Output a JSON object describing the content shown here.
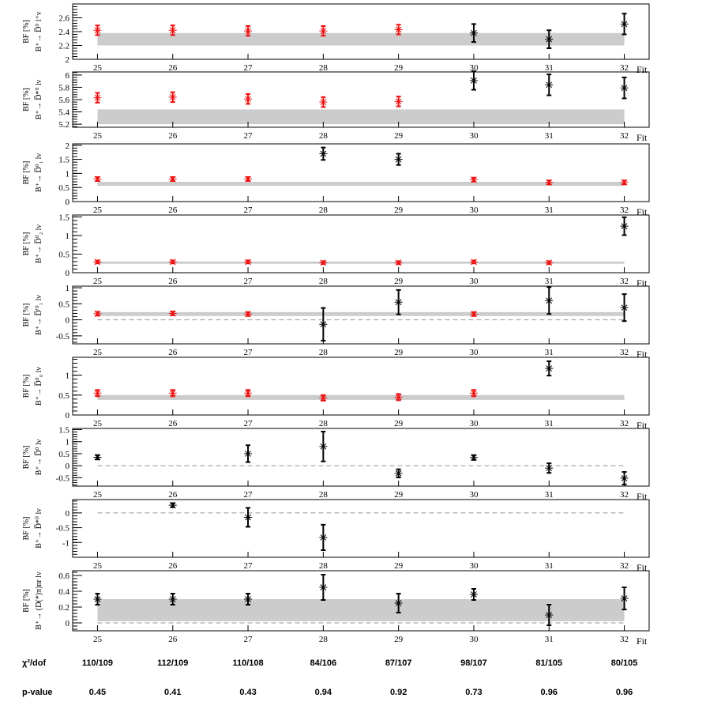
{
  "x_axis_word": "Fit",
  "fits": [
    "25",
    "26",
    "27",
    "28",
    "29",
    "30",
    "31",
    "32"
  ],
  "colors": {
    "consistent": "#ee1111",
    "inconsistent": "#000000",
    "band": "#cccccc",
    "dashed": "#999999",
    "frame": "#000000"
  },
  "chart_data": [
    {
      "type": "scatter",
      "ylabel_line1": "BF [%]",
      "ylabel_line2": "B⁺→ D̅⁰ l⁺ν",
      "ylim": [
        2.0,
        2.8
      ],
      "yticks": [
        2,
        2.2,
        2.4,
        2.6
      ],
      "ytick_labels": [
        "2",
        "2.2",
        "2.4",
        "2.6"
      ],
      "band": [
        2.2,
        2.38
      ],
      "zero_line": false,
      "x": [
        25,
        26,
        27,
        28,
        29,
        30,
        31,
        32
      ],
      "values": [
        2.42,
        2.42,
        2.41,
        2.41,
        2.43,
        2.38,
        2.29,
        2.51
      ],
      "errors": [
        0.07,
        0.07,
        0.07,
        0.07,
        0.07,
        0.13,
        0.13,
        0.15
      ],
      "status": [
        "c",
        "c",
        "c",
        "c",
        "c",
        "i",
        "i",
        "i"
      ]
    },
    {
      "type": "scatter",
      "ylabel_line1": "BF [%]",
      "ylabel_line2": "B⁺→ D̅*⁰ lν",
      "ylim": [
        5.15,
        6.05
      ],
      "yticks": [
        5.2,
        5.4,
        5.6,
        5.8,
        6.0
      ],
      "ytick_labels": [
        "5.2",
        "5.4",
        "5.6",
        "5.8",
        "6"
      ],
      "band": [
        5.2,
        5.44
      ],
      "zero_line": false,
      "x": [
        25,
        26,
        27,
        28,
        29,
        30,
        31,
        32
      ],
      "values": [
        5.63,
        5.64,
        5.61,
        5.56,
        5.57,
        5.91,
        5.84,
        5.79
      ],
      "errors": [
        0.08,
        0.08,
        0.08,
        0.08,
        0.08,
        0.15,
        0.17,
        0.17
      ],
      "status": [
        "c",
        "c",
        "c",
        "c",
        "c",
        "i",
        "i",
        "i"
      ]
    },
    {
      "type": "scatter",
      "ylabel_line1": "BF [%]",
      "ylabel_line2": "B⁺→ D̅⁰₁ lν",
      "ylim": [
        0,
        2.05
      ],
      "yticks": [
        0,
        0.5,
        1,
        1.5,
        2
      ],
      "ytick_labels": [
        "0",
        "0.5",
        "1",
        "1.5",
        "2"
      ],
      "band": [
        0.56,
        0.7
      ],
      "zero_line": false,
      "x": [
        25,
        26,
        27,
        28,
        29,
        30,
        31,
        32
      ],
      "values": [
        0.8,
        0.8,
        0.8,
        1.7,
        1.5,
        0.78,
        0.68,
        0.68
      ],
      "errors": [
        0.07,
        0.07,
        0.07,
        0.22,
        0.2,
        0.07,
        0.07,
        0.07
      ],
      "status": [
        "c",
        "c",
        "c",
        "i",
        "i",
        "c",
        "c",
        "c"
      ]
    },
    {
      "type": "scatter",
      "ylabel_line1": "BF [%]",
      "ylabel_line2": "B⁺→ D̅⁰₂ lν",
      "ylim": [
        0,
        1.55
      ],
      "yticks": [
        0,
        0.5,
        1,
        1.5
      ],
      "ytick_labels": [
        "0",
        "0.5",
        "1",
        "1.5"
      ],
      "band": [
        0.24,
        0.3
      ],
      "zero_line": false,
      "x": [
        25,
        26,
        27,
        28,
        29,
        30,
        31,
        32
      ],
      "values": [
        0.29,
        0.29,
        0.29,
        0.27,
        0.27,
        0.29,
        0.27,
        1.25
      ],
      "errors": [
        0.04,
        0.04,
        0.04,
        0.04,
        0.04,
        0.04,
        0.04,
        0.24
      ],
      "status": [
        "c",
        "c",
        "c",
        "c",
        "c",
        "c",
        "c",
        "i"
      ]
    },
    {
      "type": "scatter",
      "ylabel_line1": "BF [%]",
      "ylabel_line2": "B⁺→ D̅'⁰₁ lν",
      "ylim": [
        -0.75,
        1.05
      ],
      "yticks": [
        -0.5,
        0,
        0.5,
        1
      ],
      "ytick_labels": [
        "-0.5",
        "0",
        "0.5",
        "1"
      ],
      "band": [
        0.12,
        0.24
      ],
      "zero_line": true,
      "x": [
        25,
        26,
        27,
        28,
        29,
        30,
        31,
        32
      ],
      "values": [
        0.19,
        0.2,
        0.18,
        -0.14,
        0.55,
        0.18,
        0.6,
        0.38
      ],
      "errors": [
        0.06,
        0.06,
        0.06,
        0.51,
        0.38,
        0.06,
        0.42,
        0.42
      ],
      "status": [
        "c",
        "c",
        "c",
        "i",
        "i",
        "c",
        "i",
        "i"
      ]
    },
    {
      "type": "scatter",
      "ylabel_line1": "BF [%]",
      "ylabel_line2": "B⁺→ D̅⁰₀ lν",
      "ylim": [
        0,
        1.45
      ],
      "yticks": [
        0,
        0.5,
        1
      ],
      "ytick_labels": [
        "0",
        "0.5",
        "1"
      ],
      "band": [
        0.38,
        0.5
      ],
      "zero_line": false,
      "x": [
        25,
        26,
        27,
        28,
        29,
        30,
        31
      ],
      "values": [
        0.55,
        0.55,
        0.55,
        0.43,
        0.45,
        0.55,
        1.17
      ],
      "errors": [
        0.08,
        0.08,
        0.08,
        0.07,
        0.08,
        0.08,
        0.18
      ],
      "status": [
        "c",
        "c",
        "c",
        "c",
        "c",
        "c",
        "i"
      ]
    },
    {
      "type": "scatter",
      "ylabel_line1": "BF [%]",
      "ylabel_line2": "B⁺→ D̅⁰ lν",
      "ylim": [
        -0.85,
        1.55
      ],
      "yticks": [
        -0.5,
        0,
        0.5,
        1,
        1.5
      ],
      "ytick_labels": [
        "-0.5",
        "0",
        "0.5",
        "1",
        "1.5"
      ],
      "band": null,
      "zero_line": true,
      "x": [
        25,
        27,
        28,
        29,
        30,
        31,
        32
      ],
      "values": [
        0.35,
        0.5,
        0.8,
        -0.32,
        0.34,
        -0.1,
        -0.52
      ],
      "errors": [
        0.09,
        0.35,
        0.62,
        0.17,
        0.1,
        0.2,
        0.26
      ],
      "status": [
        "i",
        "i",
        "i",
        "i",
        "i",
        "i",
        "i"
      ]
    },
    {
      "type": "scatter",
      "ylabel_line1": "BF [%]",
      "ylabel_line2": "B⁺→ D̅*⁰ lν",
      "ylim": [
        -1.5,
        0.45
      ],
      "yticks": [
        -1,
        -0.5,
        0
      ],
      "ytick_labels": [
        "-1",
        "-0.5",
        "0"
      ],
      "band": null,
      "zero_line": true,
      "x": [
        26,
        27,
        28
      ],
      "values": [
        0.26,
        -0.15,
        -0.83
      ],
      "errors": [
        0.07,
        0.32,
        0.43
      ],
      "status": [
        "i",
        "i",
        "i"
      ]
    },
    {
      "type": "scatter",
      "ylabel_line1": "BF [%]",
      "ylabel_line2": "B⁺→ (D(*)π)nr lν",
      "ylim": [
        -0.1,
        0.66
      ],
      "yticks": [
        0,
        0.2,
        0.4,
        0.6
      ],
      "ytick_labels": [
        "0",
        "0.2",
        "0.4",
        "0.6"
      ],
      "band": [
        0.02,
        0.3
      ],
      "zero_line": true,
      "x": [
        25,
        26,
        27,
        28,
        29,
        30,
        31,
        32
      ],
      "values": [
        0.3,
        0.3,
        0.3,
        0.45,
        0.25,
        0.36,
        0.1,
        0.31
      ],
      "errors": [
        0.07,
        0.07,
        0.07,
        0.16,
        0.12,
        0.07,
        0.13,
        0.14
      ],
      "status": [
        "i",
        "i",
        "i",
        "i",
        "i",
        "i",
        "i",
        "i"
      ]
    }
  ],
  "summary": {
    "chi2_label": "χ²/dof",
    "chi2_values": [
      "110/109",
      "112/109",
      "110/108",
      "84/106",
      "87/107",
      "98/107",
      "81/105",
      "80/105"
    ],
    "pvalue_label": "p-value",
    "pvalue_values": [
      "0.45",
      "0.41",
      "0.43",
      "0.94",
      "0.92",
      "0.73",
      "0.96",
      "0.96"
    ]
  }
}
